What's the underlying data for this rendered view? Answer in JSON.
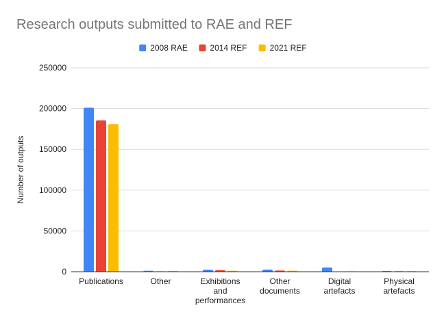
{
  "chart_data": {
    "type": "bar",
    "title": "Research outputs submitted to RAE and REF",
    "xlabel": "",
    "ylabel": "Number of outputs",
    "ylim": [
      0,
      250000
    ],
    "yticks": [
      0,
      50000,
      100000,
      150000,
      200000,
      250000
    ],
    "grid": true,
    "legend_position": "top-center",
    "categories": [
      [
        "Publications"
      ],
      [
        "Other"
      ],
      [
        "Exhibitions",
        "and",
        "performances"
      ],
      [
        "Other",
        "documents"
      ],
      [
        "Digital",
        "artefacts"
      ],
      [
        "Physical",
        "artefacts"
      ]
    ],
    "series": [
      {
        "name": "2008 RAE",
        "color": "#4285f4",
        "values": [
          201000,
          1200,
          2500,
          2600,
          5200,
          800
        ]
      },
      {
        "name": "2014 REF",
        "color": "#ea4335",
        "values": [
          185500,
          500,
          2000,
          1500,
          400,
          600
        ]
      },
      {
        "name": "2021 REF",
        "color": "#fbbc04",
        "values": [
          181000,
          900,
          1200,
          1300,
          500,
          700
        ]
      }
    ]
  }
}
